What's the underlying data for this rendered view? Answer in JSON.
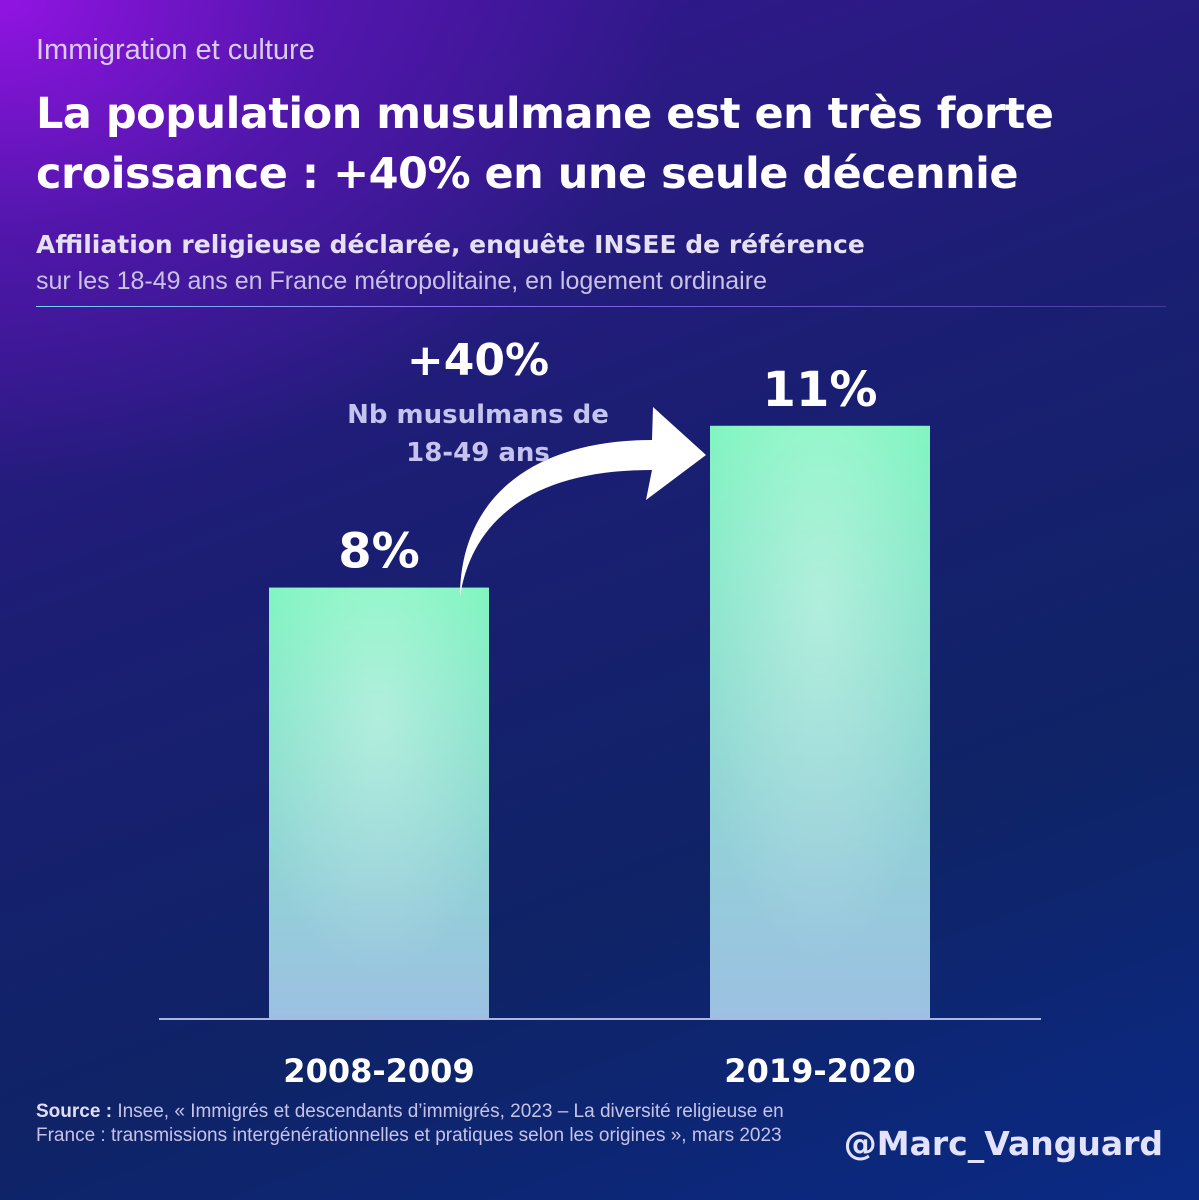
{
  "header": {
    "kicker": "Immigration et culture",
    "title": "La population musulmane est en très forte croissance : +40% en une seule décennie",
    "subtitle": "Affiliation religieuse déclarée, enquête INSEE de référence",
    "subtitle2": "sur les 18-49 ans en France métropolitaine, en logement ordinaire"
  },
  "annotation": {
    "growth": "+40%",
    "growth_label": "Nb musulmans de 18-49 ans",
    "arrow_icon": "curved-arrow-icon"
  },
  "chart_data": {
    "type": "bar",
    "title": "Affiliation religieuse déclarée, enquête INSEE de référence",
    "xlabel": "",
    "ylabel": "",
    "categories": [
      "2008-2009",
      "2019-2020"
    ],
    "values": [
      8,
      11
    ],
    "value_labels": [
      "8%",
      "11%"
    ],
    "ylim": [
      0,
      14
    ],
    "grid": false,
    "legend": "none"
  },
  "footer": {
    "source_label": "Source :",
    "source_text": "Insee, « Immigrés et descendants d’immigrés, 2023 – La diversité religieuse en France : transmissions intergénérationnelles et pratiques selon les origines », mars 2023",
    "handle": "@Marc_Vanguard"
  },
  "colors": {
    "bar_top": "#7ff5c0",
    "bar_bottom": "#9cc0e2",
    "background_dark": "#0f2366",
    "background_purple": "#9614e6"
  }
}
